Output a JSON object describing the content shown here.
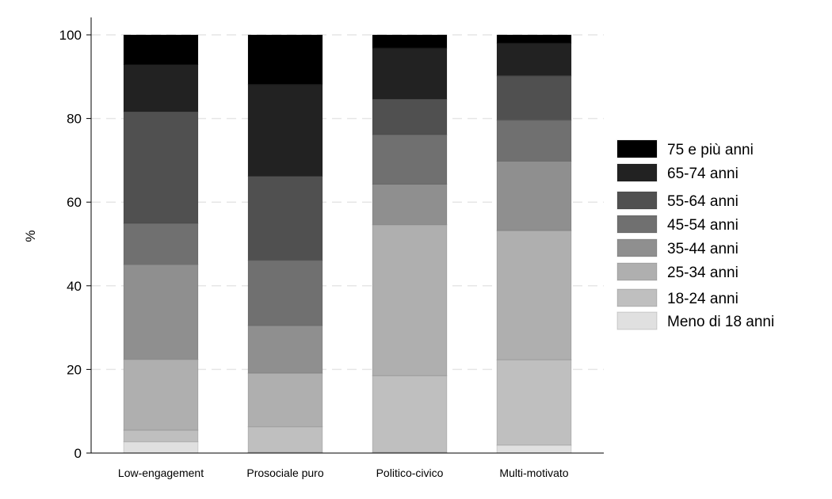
{
  "chart_data": {
    "type": "bar",
    "stacked": true,
    "title": "",
    "xlabel": "",
    "ylabel": "%",
    "ylim": [
      0,
      100
    ],
    "yticks": [
      "0",
      "20",
      "40",
      "60",
      "80",
      "100"
    ],
    "grid": true,
    "legend_position": "right",
    "categories": [
      "Low-engagement",
      "Prosociale puro",
      "Politico-civico",
      "Multi-motivato"
    ],
    "series": [
      {
        "name": "Meno di 18 anni",
        "color": "#e0e0e0",
        "values": [
          2.7,
          0.2,
          0.2,
          1.9
        ]
      },
      {
        "name": "18-24 anni",
        "color": "#bfbfbf",
        "values": [
          2.8,
          6.1,
          18.3,
          20.4
        ]
      },
      {
        "name": "25-34 anni",
        "color": "#afafaf",
        "values": [
          16.9,
          12.8,
          36.1,
          30.9
        ]
      },
      {
        "name": "35-44 anni",
        "color": "#8f8f8f",
        "values": [
          22.7,
          11.4,
          9.7,
          16.6
        ]
      },
      {
        "name": "45-54 anni",
        "color": "#707070",
        "values": [
          9.8,
          15.6,
          11.8,
          9.8
        ]
      },
      {
        "name": "55-64 anni",
        "color": "#505050",
        "values": [
          26.7,
          20.1,
          8.5,
          10.6
        ]
      },
      {
        "name": "65-74 anni",
        "color": "#222222",
        "values": [
          11.3,
          21.9,
          12.2,
          7.8
        ]
      },
      {
        "name": "75 e più anni",
        "color": "#000000",
        "values": [
          7.1,
          11.9,
          3.2,
          2.0
        ]
      }
    ]
  }
}
